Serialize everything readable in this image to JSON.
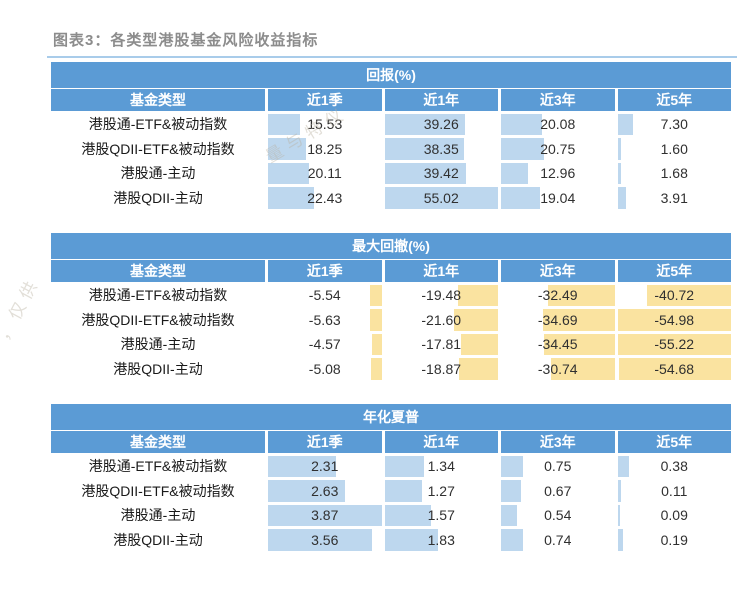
{
  "title": "图表3：各类型港股基金风险收益指标",
  "watermark": {
    "left_fragment": "，仅供",
    "diagonal_fragment": "量与特仪"
  },
  "colors": {
    "header_blue": "#5B9BD5",
    "bar_blue": "#BDD7EE",
    "bar_yellow": "#FAE3A0",
    "title_gray": "#8C8C8C",
    "rule_blue": "#A9CCEA"
  },
  "columns": [
    "基金类型",
    "近1季",
    "近1年",
    "近3年",
    "近5年"
  ],
  "tables": [
    {
      "id": "return",
      "header": "回报(%)",
      "bar_color": "#BDD7EE",
      "bar_anchor": "left",
      "bar_max": 55.02,
      "rows": [
        {
          "label": "港股通-ETF&被动指数",
          "values": [
            "15.53",
            "39.26",
            "20.08",
            "7.30"
          ]
        },
        {
          "label": "港股QDII-ETF&被动指数",
          "values": [
            "18.25",
            "38.35",
            "20.75",
            "1.60"
          ]
        },
        {
          "label": "港股通-主动",
          "values": [
            "20.11",
            "39.42",
            "12.96",
            "1.68"
          ]
        },
        {
          "label": "港股QDII-主动",
          "values": [
            "22.43",
            "55.02",
            "19.04",
            "3.91"
          ]
        }
      ]
    },
    {
      "id": "max-drawdown",
      "header": "最大回撤(%)",
      "bar_color": "#FAE3A0",
      "bar_anchor": "right",
      "bar_max": 55.22,
      "rows": [
        {
          "label": "港股通-ETF&被动指数",
          "values": [
            "-5.54",
            "-19.48",
            "-32.49",
            "-40.72"
          ]
        },
        {
          "label": "港股QDII-ETF&被动指数",
          "values": [
            "-5.63",
            "-21.60",
            "-34.69",
            "-54.98"
          ]
        },
        {
          "label": "港股通-主动",
          "values": [
            "-4.57",
            "-17.81",
            "-34.45",
            "-55.22"
          ]
        },
        {
          "label": "港股QDII-主动",
          "values": [
            "-5.08",
            "-18.87",
            "-30.74",
            "-54.68"
          ]
        }
      ]
    },
    {
      "id": "sharpe",
      "header": "年化夏普",
      "bar_color": "#BDD7EE",
      "bar_anchor": "left",
      "bar_max": 3.87,
      "rows": [
        {
          "label": "港股通-ETF&被动指数",
          "values": [
            "2.31",
            "1.34",
            "0.75",
            "0.38"
          ]
        },
        {
          "label": "港股QDII-ETF&被动指数",
          "values": [
            "2.63",
            "1.27",
            "0.67",
            "0.11"
          ]
        },
        {
          "label": "港股通-主动",
          "values": [
            "3.87",
            "1.57",
            "0.54",
            "0.09"
          ]
        },
        {
          "label": "港股QDII-主动",
          "values": [
            "3.56",
            "1.83",
            "0.74",
            "0.19"
          ]
        }
      ]
    }
  ],
  "chart_data": [
    {
      "type": "table",
      "title": "回报(%)",
      "columns": [
        "基金类型",
        "近1季",
        "近1年",
        "近3年",
        "近5年"
      ],
      "rows": [
        [
          "港股通-ETF&被动指数",
          15.53,
          39.26,
          20.08,
          7.3
        ],
        [
          "港股QDII-ETF&被动指数",
          18.25,
          38.35,
          20.75,
          1.6
        ],
        [
          "港股通-主动",
          20.11,
          39.42,
          12.96,
          1.68
        ],
        [
          "港股QDII-主动",
          22.43,
          55.02,
          19.04,
          3.91
        ]
      ],
      "databar": {
        "color": "#BDD7EE",
        "anchor": "left",
        "scale_max": 55.02
      }
    },
    {
      "type": "table",
      "title": "最大回撤(%)",
      "columns": [
        "基金类型",
        "近1季",
        "近1年",
        "近3年",
        "近5年"
      ],
      "rows": [
        [
          "港股通-ETF&被动指数",
          -5.54,
          -19.48,
          -32.49,
          -40.72
        ],
        [
          "港股QDII-ETF&被动指数",
          -5.63,
          -21.6,
          -34.69,
          -54.98
        ],
        [
          "港股通-主动",
          -4.57,
          -17.81,
          -34.45,
          -55.22
        ],
        [
          "港股QDII-主动",
          -5.08,
          -18.87,
          -30.74,
          -54.68
        ]
      ],
      "databar": {
        "color": "#FAE3A0",
        "anchor": "right",
        "scale_max": 55.22
      }
    },
    {
      "type": "table",
      "title": "年化夏普",
      "columns": [
        "基金类型",
        "近1季",
        "近1年",
        "近3年",
        "近5年"
      ],
      "rows": [
        [
          "港股通-ETF&被动指数",
          2.31,
          1.34,
          0.75,
          0.38
        ],
        [
          "港股QDII-ETF&被动指数",
          2.63,
          1.27,
          0.67,
          0.11
        ],
        [
          "港股通-主动",
          3.87,
          1.57,
          0.54,
          0.09
        ],
        [
          "港股QDII-主动",
          3.56,
          1.83,
          0.74,
          0.19
        ]
      ],
      "databar": {
        "color": "#BDD7EE",
        "anchor": "left",
        "scale_max": 3.87
      }
    }
  ]
}
